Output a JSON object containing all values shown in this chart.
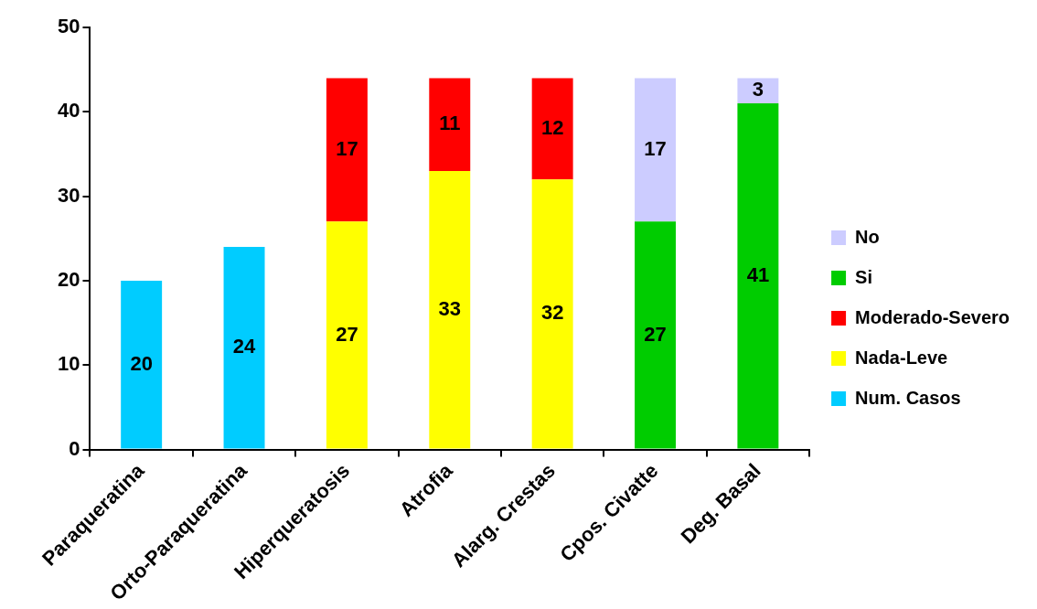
{
  "chart_data": {
    "type": "bar",
    "stacked": true,
    "categories": [
      "Paraqueratina",
      "Orto-Paraqueratina",
      "Hiperqueratosis",
      "Atrofia",
      "Alarg. Crestas",
      "Cpos. Civatte",
      "Deg. Basal"
    ],
    "series": [
      {
        "name": "Num. Casos",
        "color": "#00ccff",
        "values": [
          20,
          24,
          null,
          null,
          null,
          null,
          null
        ]
      },
      {
        "name": "Nada-Leve",
        "color": "#ffff00",
        "values": [
          null,
          null,
          27,
          33,
          32,
          null,
          null
        ]
      },
      {
        "name": "Moderado-Severo",
        "color": "#ff0000",
        "values": [
          null,
          null,
          17,
          11,
          12,
          null,
          null
        ]
      },
      {
        "name": "Si",
        "color": "#00cc00",
        "values": [
          null,
          null,
          null,
          null,
          null,
          27,
          41
        ]
      },
      {
        "name": "No",
        "color": "#ccccff",
        "values": [
          null,
          null,
          null,
          null,
          null,
          17,
          3
        ]
      }
    ],
    "ylim": [
      0,
      50
    ],
    "yticks": [
      0,
      10,
      20,
      30,
      40,
      50
    ],
    "grid": false,
    "legend": "right",
    "data_labels": true
  }
}
